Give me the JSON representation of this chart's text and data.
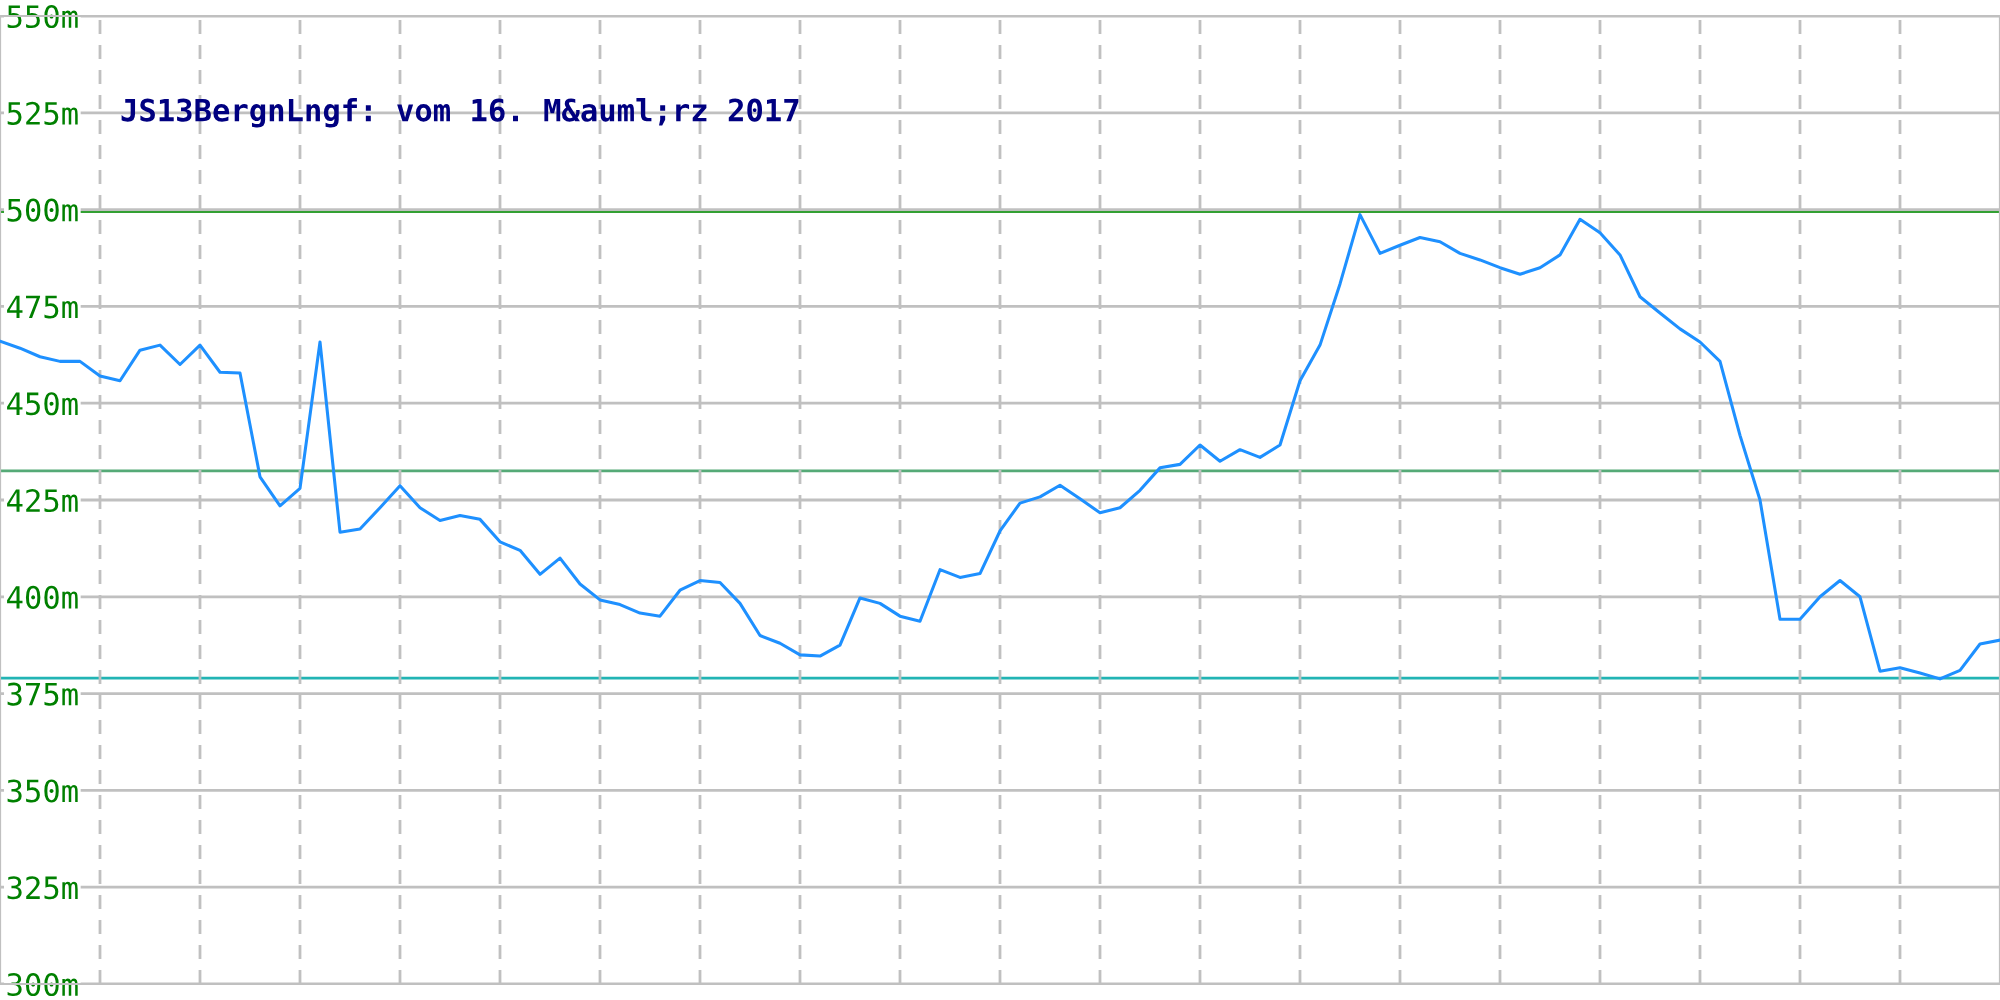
{
  "chart_data": {
    "type": "line",
    "title": "JS13BergnLngf: vom 16. M&auml;rz 2017",
    "categories": [
      null,
      null,
      null,
      null,
      null,
      null,
      null,
      null,
      null,
      null,
      null,
      null,
      null,
      null,
      null,
      null,
      null,
      null,
      null,
      null,
      null,
      null,
      null,
      null,
      null,
      null,
      null,
      null,
      null,
      null,
      null,
      null,
      null,
      null,
      null,
      null,
      null,
      null,
      null,
      null,
      null,
      null,
      null,
      null,
      null,
      null,
      null,
      null,
      null,
      null,
      null,
      null,
      null,
      null,
      null,
      null,
      null,
      null,
      null,
      null,
      null,
      null,
      null,
      null,
      null,
      null,
      null,
      null,
      null,
      null,
      null,
      null,
      null,
      null,
      null,
      null,
      null,
      null,
      null,
      null,
      null,
      null,
      null,
      null,
      null,
      null,
      null,
      null,
      null,
      null,
      null,
      null,
      null,
      null,
      null,
      null,
      null,
      null,
      null,
      null,
      null
    ],
    "series": [
      {
        "color": "#1e90ff",
        "values": [
          466,
          464.2,
          462,
          460.8,
          460.8,
          457,
          455.8,
          463.7,
          465,
          460,
          465,
          458,
          457.8,
          431,
          423.5,
          428,
          465.8,
          416.7,
          417.5,
          423,
          428.7,
          423,
          419.7,
          421,
          420,
          414.2,
          412,
          405.8,
          410,
          403.3,
          399.2,
          398,
          395.8,
          395,
          401.7,
          404.2,
          403.7,
          398.3,
          390,
          388,
          385,
          384.7,
          387.5,
          399.7,
          398.3,
          395,
          393.7,
          407,
          405,
          406,
          417,
          424.2,
          425.8,
          428.8,
          425.3,
          421.7,
          423,
          427.5,
          433.3,
          434.2,
          439.2,
          435,
          438,
          436,
          439.2,
          455.8,
          465,
          480.8,
          498.7,
          488.7,
          490.8,
          492.8,
          491.7,
          488.7,
          487,
          485,
          483.3,
          485,
          488.3,
          497.5,
          494,
          488.3,
          477.5,
          473.3,
          469.2,
          465.8,
          460.8,
          441.7,
          425,
          394.2,
          394.2,
          400,
          404.2,
          400,
          380.8,
          381.7,
          380.3,
          378.8,
          381,
          387.8,
          388.8
        ]
      }
    ],
    "ylim": [
      300,
      550
    ],
    "yticks": [
      {
        "value": 300,
        "label": "300m"
      },
      {
        "value": 325,
        "label": "325m"
      },
      {
        "value": 350,
        "label": "350m"
      },
      {
        "value": 375,
        "label": "375m"
      },
      {
        "value": 400,
        "label": "400m"
      },
      {
        "value": 425,
        "label": "425m"
      },
      {
        "value": 450,
        "label": "450m"
      },
      {
        "value": 475,
        "label": "475m"
      },
      {
        "value": 500,
        "label": "500m"
      },
      {
        "value": 525,
        "label": "525m"
      },
      {
        "value": 550,
        "label": "550m"
      }
    ],
    "grid": true,
    "ref_lines": [
      {
        "axis": "y",
        "value": 499.5,
        "color": "#33a033"
      },
      {
        "axis": "y",
        "value": 432.5,
        "color": "#55aa77"
      },
      {
        "axis": "y",
        "value": 379,
        "color": "#22b4b4"
      }
    ]
  }
}
